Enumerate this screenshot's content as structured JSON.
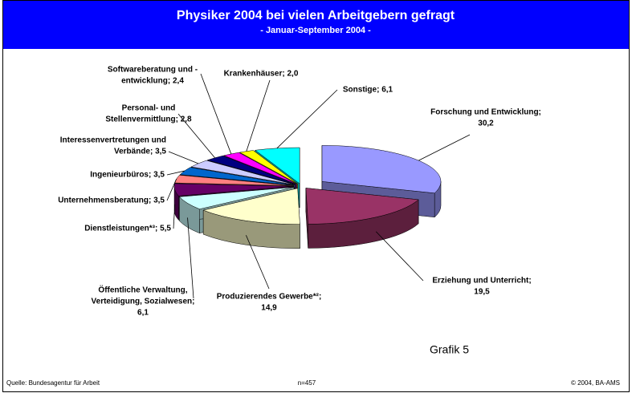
{
  "chart_data": {
    "type": "pie3d",
    "title": "Physiker 2004 bei vielen Arbeitgebern gefragt",
    "subtitle": "- Januar-September 2004 -",
    "labels": [
      [
        "Forschung und Entwicklung;",
        "30,2"
      ],
      [
        "Erziehung und Unterricht;",
        "19,5"
      ],
      [
        "Produzierendes Gewerbe*²;",
        "14,9"
      ],
      [
        "Öffentliche Verwaltung,",
        "Verteidigung, Sozialwesen;",
        "6,1"
      ],
      [
        "Dienstleistungen*³; 5,5"
      ],
      [
        "Unternehmensberatung; 3,5"
      ],
      [
        "Ingenieurbüros; 3,5"
      ],
      [
        "Interessenvertretungen und",
        "Verbände; 3,5"
      ],
      [
        "Personal- und",
        "Stellenvermittlung; 2,8"
      ],
      [
        "Softwareberatung und -",
        "entwicklung; 2,4"
      ],
      [
        "Krankenhäuser; 2,0"
      ],
      [
        "Sonstige; 6,1"
      ]
    ],
    "values": [
      30.2,
      19.5,
      14.9,
      6.1,
      5.5,
      3.5,
      3.5,
      3.5,
      2.8,
      2.4,
      2.0,
      6.1
    ],
    "colors": [
      "#9999ff",
      "#993366",
      "#ffffcc",
      "#ccffff",
      "#660066",
      "#ff8080",
      "#0066cc",
      "#ccccff",
      "#000080",
      "#ff00ff",
      "#ffff00",
      "#00ffff"
    ],
    "note": "Grafik 5",
    "source": "Quelle: Bundesagentur für Arbeit",
    "sample": "n=457",
    "copyright": "© 2004, BA-AMS"
  }
}
